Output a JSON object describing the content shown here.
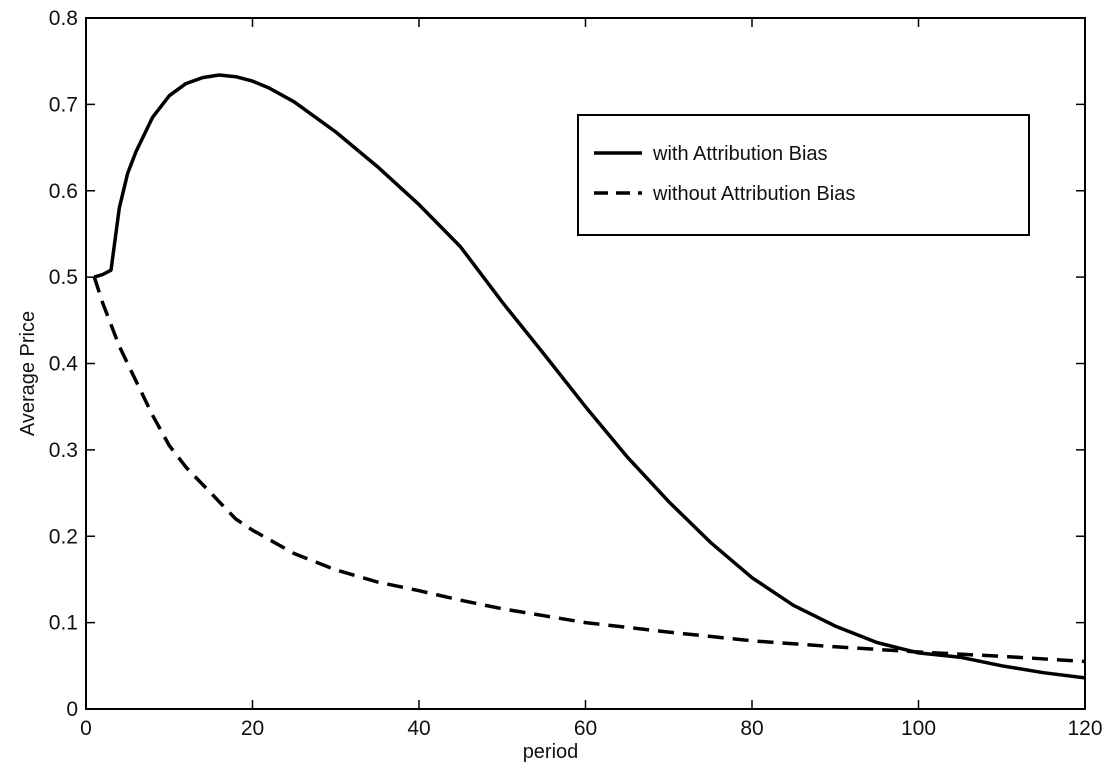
{
  "chart_data": {
    "type": "line",
    "title": "",
    "xlabel": "period",
    "ylabel": "Average Price",
    "xlim": [
      0,
      120
    ],
    "ylim": [
      0,
      0.8
    ],
    "xticks": [
      0,
      20,
      40,
      60,
      80,
      100,
      120
    ],
    "yticks": [
      0,
      0.1,
      0.2,
      0.3,
      0.4,
      0.5,
      0.6,
      0.7,
      0.8
    ],
    "xtick_labels": [
      "0",
      "20",
      "40",
      "60",
      "80",
      "100",
      "120"
    ],
    "ytick_labels": [
      "0",
      "0.1",
      "0.2",
      "0.3",
      "0.4",
      "0.5",
      "0.6",
      "0.7",
      "0.8"
    ],
    "grid": false,
    "legend_position": "top-right",
    "series": [
      {
        "name": "with Attribution Bias",
        "style": "solid",
        "color": "#000000",
        "x": [
          1,
          2,
          3,
          4,
          5,
          6,
          8,
          10,
          12,
          14,
          16,
          18,
          20,
          22,
          25,
          30,
          35,
          40,
          45,
          50,
          55,
          60,
          65,
          70,
          75,
          80,
          85,
          90,
          95,
          100,
          105,
          110,
          115,
          120
        ],
        "y": [
          0.5,
          0.503,
          0.508,
          0.58,
          0.62,
          0.645,
          0.685,
          0.71,
          0.724,
          0.731,
          0.734,
          0.732,
          0.727,
          0.719,
          0.703,
          0.668,
          0.628,
          0.584,
          0.535,
          0.471,
          0.411,
          0.35,
          0.292,
          0.24,
          0.193,
          0.152,
          0.12,
          0.096,
          0.077,
          0.065,
          0.06,
          0.05,
          0.042,
          0.036
        ]
      },
      {
        "name": "without Attribution Bias",
        "style": "dashed",
        "color": "#000000",
        "x": [
          1,
          2,
          4,
          6,
          8,
          10,
          12,
          15,
          18,
          20,
          25,
          30,
          35,
          40,
          45,
          50,
          55,
          60,
          70,
          80,
          90,
          100,
          110,
          120
        ],
        "y": [
          0.5,
          0.47,
          0.42,
          0.38,
          0.34,
          0.305,
          0.28,
          0.25,
          0.22,
          0.207,
          0.18,
          0.161,
          0.147,
          0.137,
          0.126,
          0.116,
          0.108,
          0.1,
          0.089,
          0.079,
          0.072,
          0.066,
          0.061,
          0.055
        ]
      }
    ]
  }
}
